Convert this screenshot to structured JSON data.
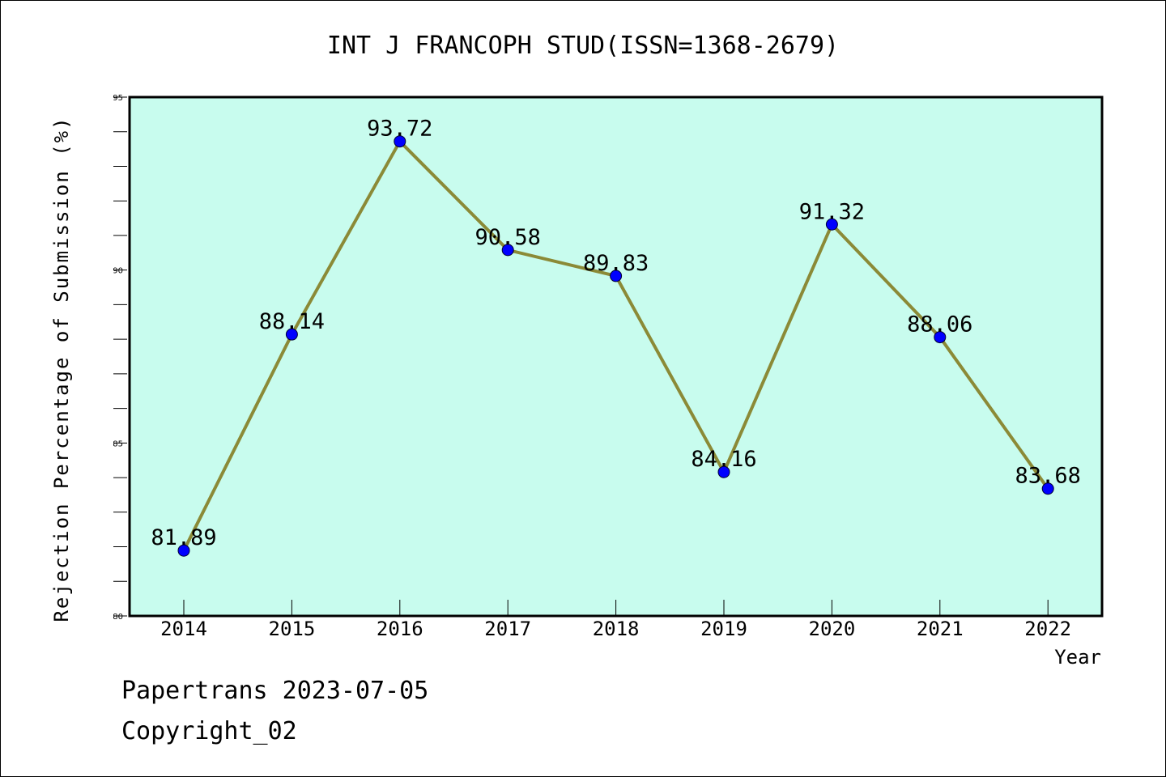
{
  "chart_data": {
    "type": "line",
    "title": "INT J FRANCOPH STUD(ISSN=1368-2679)",
    "xlabel": "Year",
    "ylabel": "Rejection Percentage of Submission (%)",
    "x": [
      "2014",
      "2015",
      "2016",
      "2017",
      "2018",
      "2019",
      "2020",
      "2021",
      "2022"
    ],
    "y": [
      81.89,
      88.14,
      93.72,
      90.58,
      89.83,
      84.16,
      91.32,
      88.06,
      83.68
    ],
    "data_labels": [
      "81.89",
      "88.14",
      "93.72",
      "90.58",
      "89.83",
      "84.16",
      "91.32",
      "88.06",
      "83.68"
    ],
    "ylim": [
      80,
      95
    ],
    "yticks": [
      80,
      85,
      90,
      95
    ],
    "ytick_labels": [
      "80",
      "85",
      "90",
      "95"
    ],
    "grid": false,
    "legend": "none",
    "colors": {
      "plot_background": "#c8fcee",
      "line": "#8b8a37",
      "marker": "#0000ff"
    }
  },
  "footer": {
    "date_line": "Papertrans 2023-07-05",
    "copyright_line": "Copyright_02"
  }
}
